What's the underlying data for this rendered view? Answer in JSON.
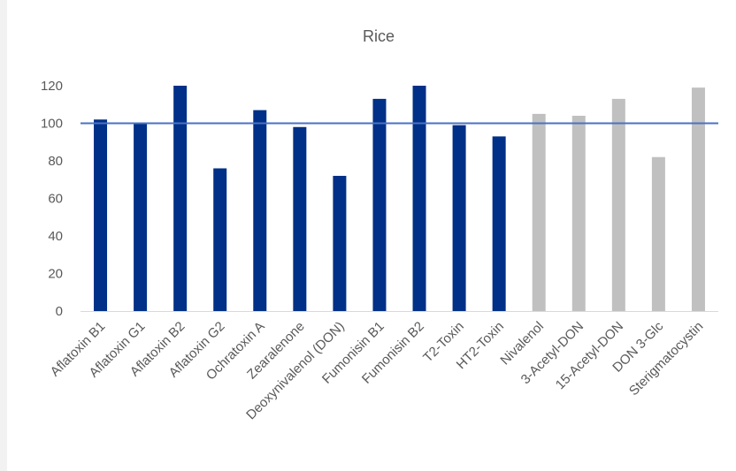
{
  "chart_data": {
    "type": "bar",
    "title": "Rice",
    "xlabel": "",
    "ylabel": "",
    "categories": [
      "Aflatoxin B1",
      "Aflatoxin G1",
      "Aflatoxin B2",
      "Aflatoxin G2",
      "Ochratoxin A",
      "Zearalenone",
      "Deoxynivalenol (DON)",
      "Fumonisin B1",
      "Fumonisin B2",
      "T2-Toxin",
      "HT2-Toxin",
      "Nivalenol",
      "3-Acetyl-DON",
      "15-Acetyl-DON",
      "DON 3-Glc",
      "Sterigmatocystin"
    ],
    "values": [
      102,
      100,
      120,
      76,
      107,
      98,
      72,
      113,
      120,
      99,
      93,
      105,
      104,
      113,
      82,
      119
    ],
    "bar_colors": [
      "#003087",
      "#003087",
      "#003087",
      "#003087",
      "#003087",
      "#003087",
      "#003087",
      "#003087",
      "#003087",
      "#003087",
      "#003087",
      "#c0c0c0",
      "#c0c0c0",
      "#c0c0c0",
      "#c0c0c0",
      "#c0c0c0"
    ],
    "yticks": [
      0,
      20,
      40,
      60,
      80,
      100,
      120
    ],
    "ylim": [
      0,
      120
    ],
    "reference_line": 100,
    "reference_line_color": "#4a72c4",
    "grid": false,
    "legend": "none"
  }
}
